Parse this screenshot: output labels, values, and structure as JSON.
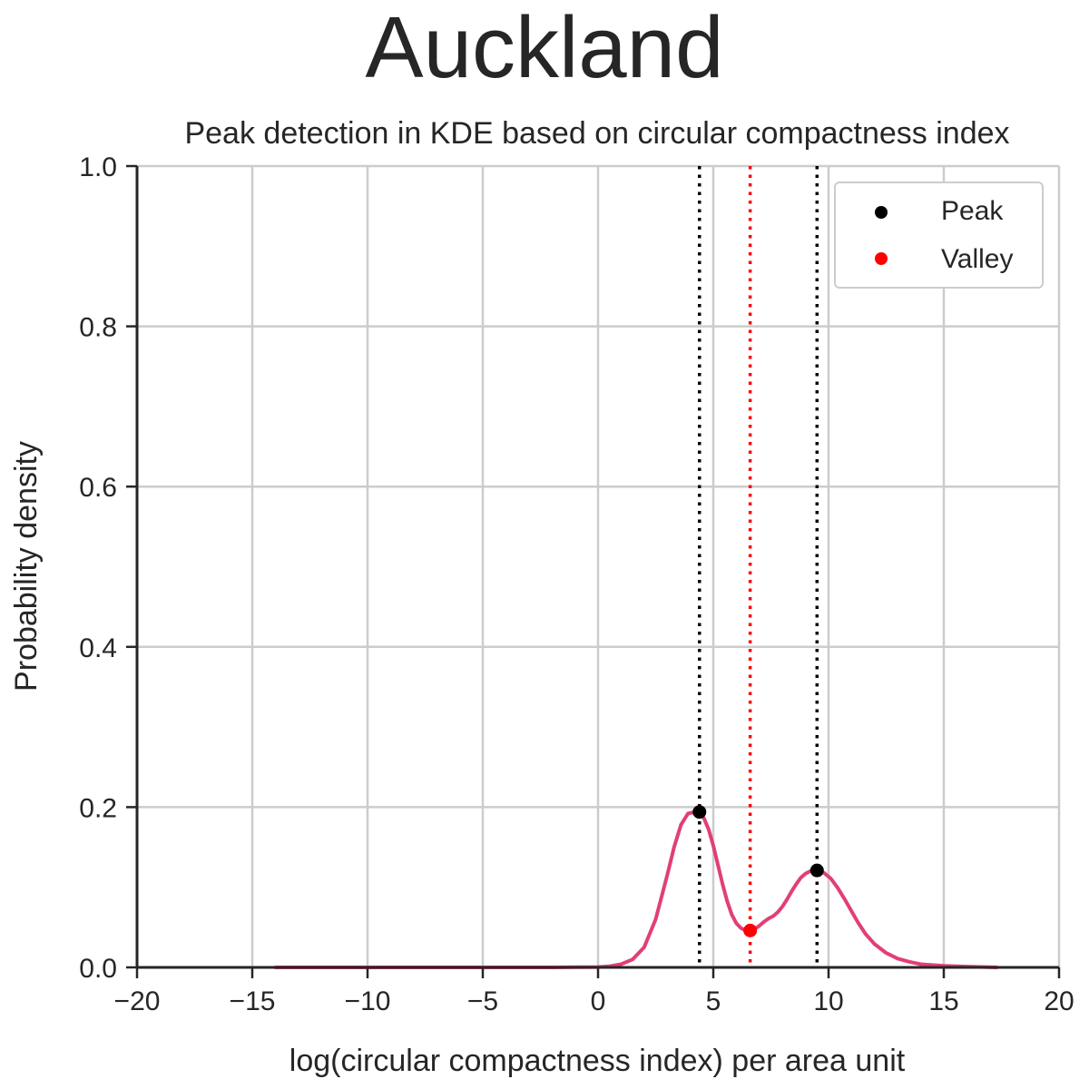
{
  "chart_data": {
    "type": "line",
    "suptitle": "Auckland",
    "title": "Peak detection in KDE based on circular compactness index",
    "xlabel": "log(circular compactness index) per area unit",
    "ylabel": "Probability density",
    "xlim": [
      -20,
      20
    ],
    "ylim": [
      0,
      1.0
    ],
    "xticks": [
      -20,
      -15,
      -10,
      -5,
      0,
      5,
      10,
      15,
      20
    ],
    "xtick_labels": [
      "−20",
      "−15",
      "−10",
      "−5",
      "0",
      "5",
      "10",
      "15",
      "20"
    ],
    "yticks": [
      0.0,
      0.2,
      0.4,
      0.6,
      0.8,
      1.0
    ],
    "ytick_labels": [
      "0.0",
      "0.2",
      "0.4",
      "0.6",
      "0.8",
      "1.0"
    ],
    "grid": true,
    "legend_position": "top-right",
    "colors": {
      "kde": "#e23f76",
      "peak": "#000000",
      "valley": "#ff0000",
      "grid": "#cccccc",
      "axis": "#262626"
    },
    "kde_curve": {
      "x": [
        -14,
        -10,
        -5,
        -2,
        0,
        0.5,
        1,
        1.5,
        2,
        2.5,
        3,
        3.3,
        3.6,
        3.9,
        4.2,
        4.4,
        4.6,
        4.8,
        5.0,
        5.2,
        5.4,
        5.6,
        5.8,
        6.0,
        6.2,
        6.4,
        6.6,
        6.8,
        7.0,
        7.2,
        7.4,
        7.6,
        7.8,
        8.0,
        8.2,
        8.4,
        8.6,
        8.8,
        9.0,
        9.2,
        9.5,
        9.8,
        10.1,
        10.4,
        10.7,
        11.0,
        11.3,
        11.6,
        12.0,
        12.5,
        13.0,
        13.5,
        14.0,
        15.0,
        16.0,
        17.3
      ],
      "y": [
        0.0,
        0.0,
        0.0,
        0.0,
        0.0005,
        0.0015,
        0.004,
        0.01,
        0.025,
        0.06,
        0.115,
        0.15,
        0.178,
        0.192,
        0.194,
        0.193,
        0.186,
        0.172,
        0.152,
        0.128,
        0.104,
        0.083,
        0.066,
        0.055,
        0.049,
        0.046,
        0.046,
        0.048,
        0.052,
        0.057,
        0.061,
        0.064,
        0.069,
        0.076,
        0.085,
        0.095,
        0.104,
        0.112,
        0.117,
        0.12,
        0.121,
        0.118,
        0.111,
        0.099,
        0.085,
        0.07,
        0.055,
        0.042,
        0.029,
        0.018,
        0.011,
        0.007,
        0.004,
        0.002,
        0.001,
        0.0
      ]
    },
    "series": [
      {
        "name": "Peak",
        "type": "scatter",
        "color": "#000000",
        "points": [
          {
            "x": 4.4,
            "y": 0.194
          },
          {
            "x": 9.5,
            "y": 0.121
          }
        ]
      },
      {
        "name": "Valley",
        "type": "scatter",
        "color": "#ff0000",
        "points": [
          {
            "x": 6.6,
            "y": 0.046
          }
        ]
      }
    ],
    "vlines": [
      {
        "x": 4.4,
        "color": "#000000",
        "style": "dotted"
      },
      {
        "x": 6.6,
        "color": "#ff0000",
        "style": "dotted"
      },
      {
        "x": 9.5,
        "color": "#000000",
        "style": "dotted"
      }
    ]
  }
}
